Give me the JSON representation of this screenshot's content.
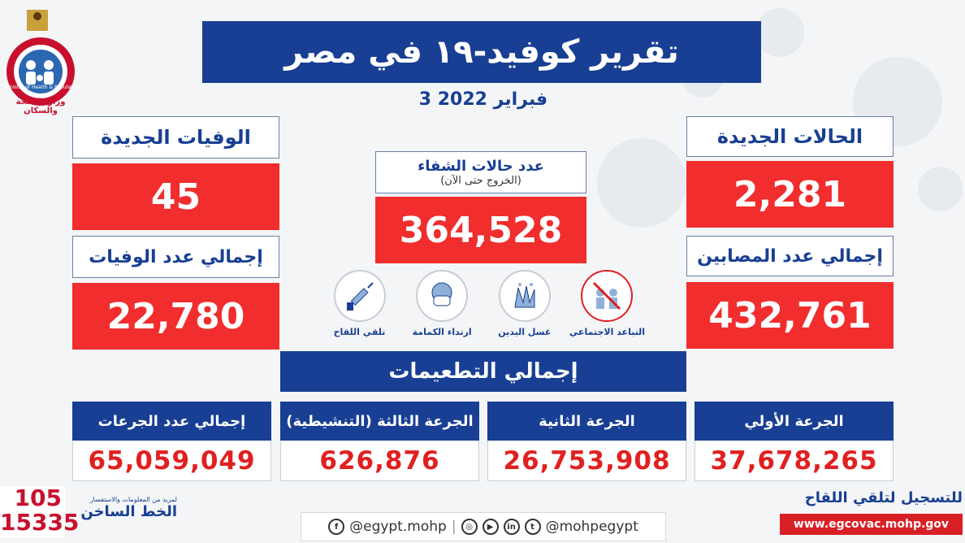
{
  "header": {
    "title": "تقرير كوفيد-١٩ في مصر",
    "date": "3 فبراير 2022"
  },
  "logo": {
    "ministry_en": "Ministry of Health & Population",
    "ministry_ar": "وزارة الصحة والسكان"
  },
  "cases": {
    "new_label": "الحالات الجديدة",
    "new_value": "2,281",
    "total_label": "إجمالي عدد المصابين",
    "total_value": "432,761"
  },
  "deaths": {
    "new_label": "الوفيات الجديدة",
    "new_value": "45",
    "total_label": "إجمالي عدد الوفيات",
    "total_value": "22,780"
  },
  "recovered": {
    "label": "عدد حالات الشفاء",
    "sublabel": "(الخروج حتى الآن)",
    "value": "364,528"
  },
  "precautions": [
    {
      "label": "التباعد الاجتماعي",
      "icon": "social-distancing-icon"
    },
    {
      "label": "غسل اليدين",
      "icon": "hand-washing-icon"
    },
    {
      "label": "ارتداء الكمامة",
      "icon": "face-mask-icon"
    },
    {
      "label": "تلقي اللقاح",
      "icon": "vaccine-icon"
    }
  ],
  "vaccinations": {
    "title": "إجمالي التطعيمات",
    "first_label": "الجرعة الأولي",
    "first_value": "37,678,265",
    "second_label": "الجرعة الثانية",
    "second_value": "26,753,908",
    "third_label": "الجرعة الثالثة (التنشيطية)",
    "third_value": "626,876",
    "total_label": "إجمالي عدد الجرعات",
    "total_value": "65,059,049"
  },
  "footer": {
    "hotline_small": "لمزيد من المعلومات والاستفسار",
    "hotline_label": "الخط الساخن",
    "hotline_number_1": "105",
    "hotline_number_2": "15335",
    "social_handle_1": "@egypt.mohp",
    "social_handle_2": "@mohpegypt",
    "register_label": "للتسجيل لتلقي اللقاح",
    "register_url": "www.egcovac.mohp.gov"
  },
  "colors": {
    "blue": "#183f93",
    "red": "#f12d2d",
    "number_red": "#e02020"
  }
}
